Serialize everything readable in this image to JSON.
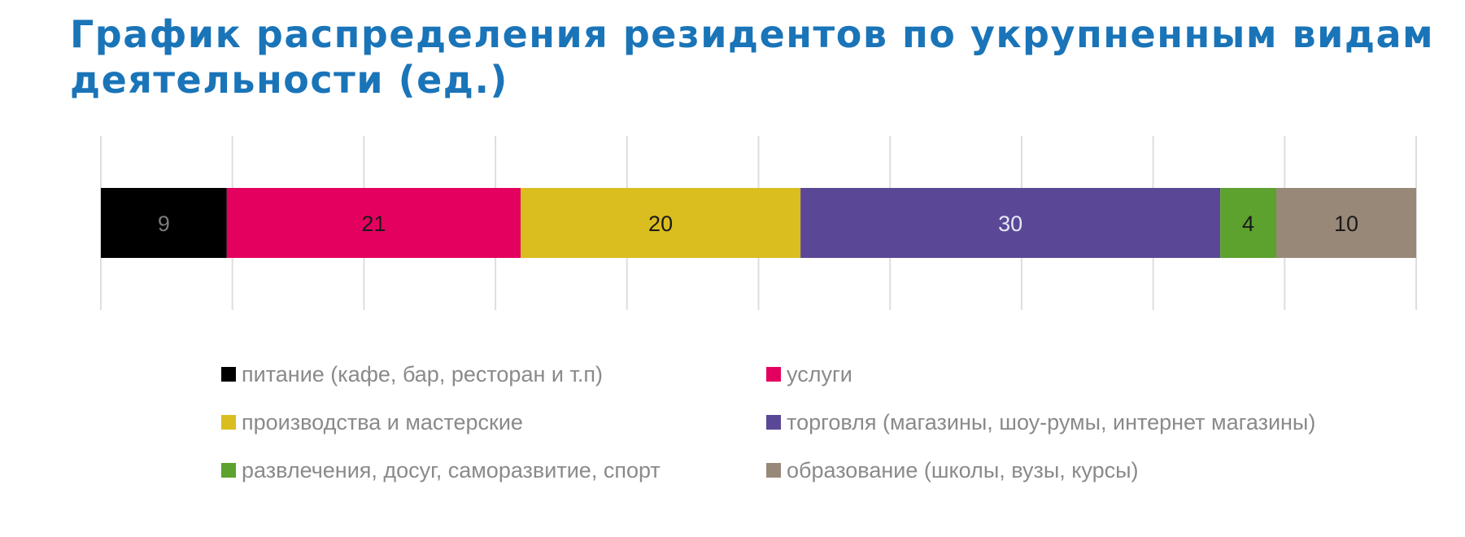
{
  "title": "График распределения резидентов по укрупненным видам деятельности (ед.)",
  "chart_data": {
    "type": "bar",
    "orientation": "horizontal-stacked",
    "xlim": [
      0,
      94
    ],
    "grid": true,
    "legend_position": "bottom",
    "series": [
      {
        "name": "питание (кафе, бар, ресторан и т.п)",
        "values": [
          9
        ],
        "color": "#000000",
        "label_color": "#7a7a7a"
      },
      {
        "name": "услуги",
        "values": [
          21
        ],
        "color": "#e4005e",
        "label_color": "#1a1a1a"
      },
      {
        "name": "производства и мастерские",
        "values": [
          20
        ],
        "color": "#dabd1f",
        "label_color": "#1a1a1a"
      },
      {
        "name": "торговля (магазины, шоу-румы, интернет магазины)",
        "values": [
          30
        ],
        "color": "#5a4897",
        "label_color": "#e8e8f4"
      },
      {
        "name": "развлечения, досуг, саморазвитие, спорт",
        "values": [
          4
        ],
        "color": "#5da12e",
        "label_color": "#1a1a1a"
      },
      {
        "name": "образование (школы, вузы, курсы)",
        "values": [
          10
        ],
        "color": "#988878",
        "label_color": "#1a1a1a"
      }
    ]
  }
}
